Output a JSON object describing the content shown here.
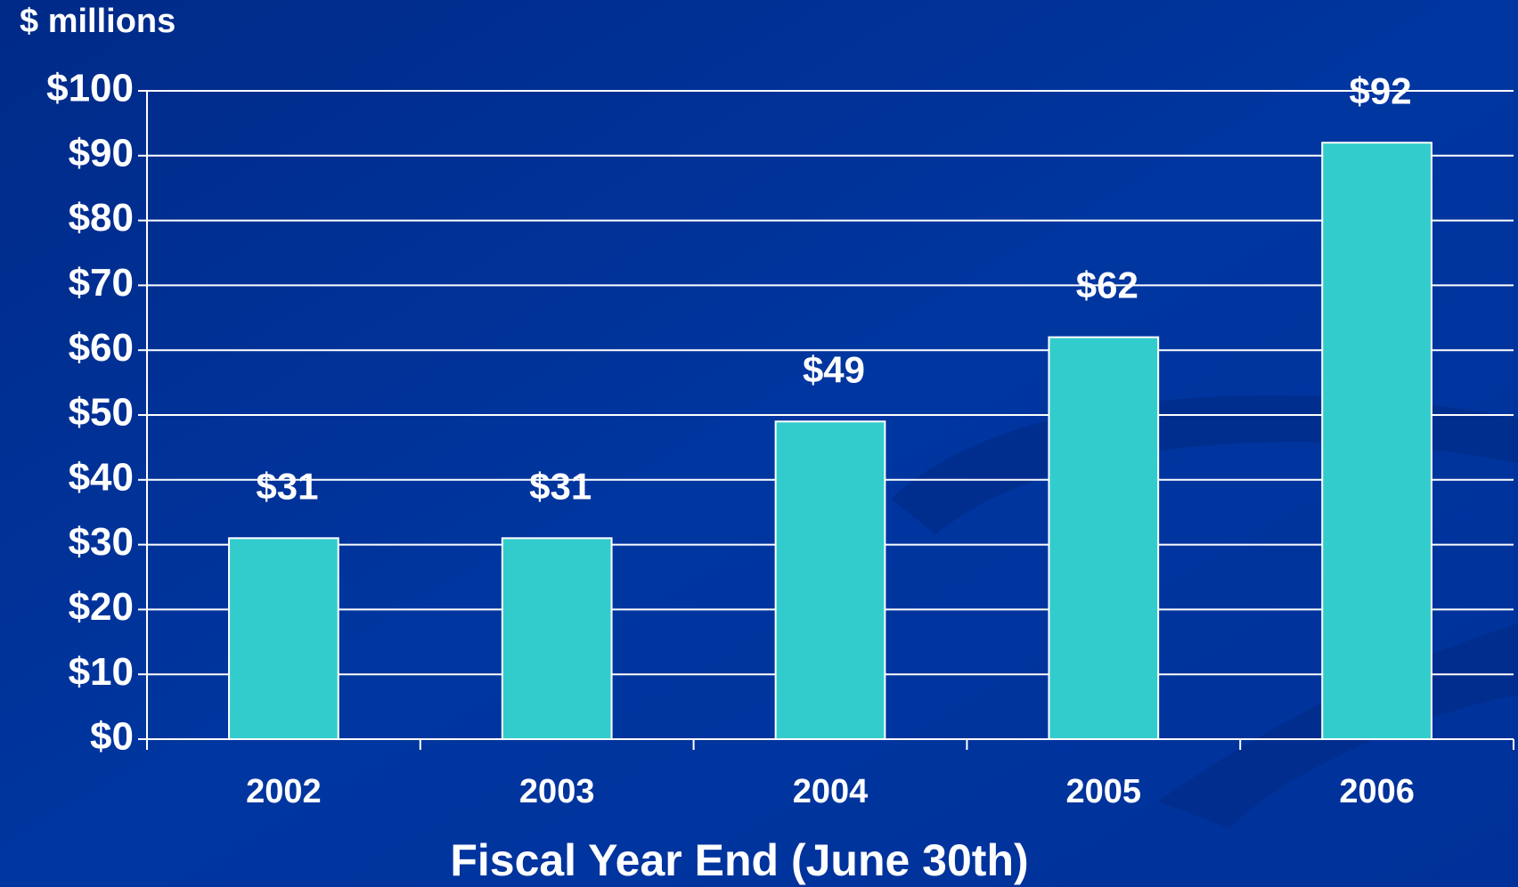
{
  "chart_data": {
    "type": "bar",
    "y_label": "$ millions",
    "x_label": "Fiscal Year End (June 30th)",
    "categories": [
      "2002",
      "2003",
      "2004",
      "2005",
      "2006"
    ],
    "values": [
      31,
      31,
      49,
      62,
      92
    ],
    "value_labels": [
      "$31",
      "$31",
      "$49",
      "$62",
      "$92"
    ],
    "color": "#33cccc",
    "ylim": [
      0,
      100
    ],
    "yticks": [
      {
        "value": 0,
        "label": "$0"
      },
      {
        "value": 10,
        "label": "$10"
      },
      {
        "value": 20,
        "label": "$20"
      },
      {
        "value": 30,
        "label": "$30"
      },
      {
        "value": 40,
        "label": "$40"
      },
      {
        "value": 50,
        "label": "$50"
      },
      {
        "value": 60,
        "label": "$60"
      },
      {
        "value": 70,
        "label": "$70"
      },
      {
        "value": 80,
        "label": "$80"
      },
      {
        "value": 90,
        "label": "$90"
      },
      {
        "value": 100,
        "label": "$100"
      }
    ],
    "grid": true
  }
}
